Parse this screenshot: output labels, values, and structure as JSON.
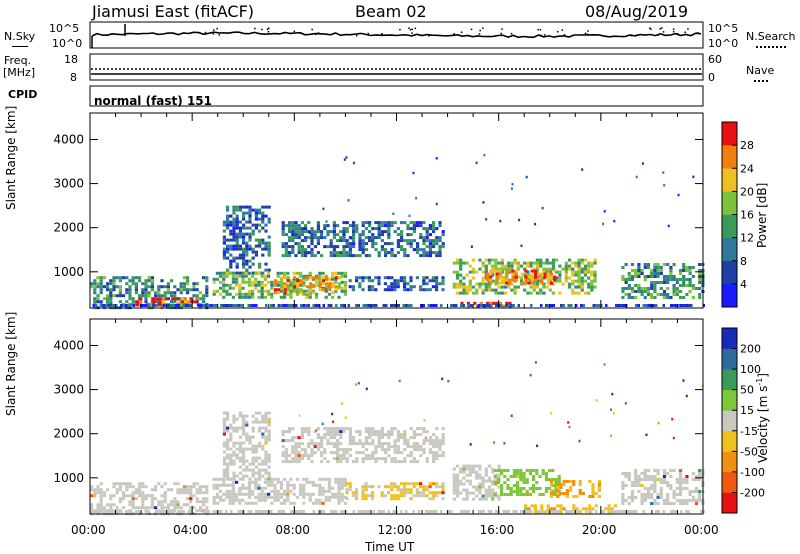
{
  "header": {
    "station": "Jiamusi East (fitACF)",
    "beam": "Beam 02",
    "date": "08/Aug/2019"
  },
  "summary": {
    "nsky_label": "N.Sky",
    "nsearch_label": "N.Search",
    "noise_ticks": [
      "10^5",
      "10^0"
    ],
    "freq_label_top": "Freq.",
    "freq_label_unit": "[MHz]",
    "freq_ticks": [
      "18",
      "8"
    ],
    "nave_label": "Nave",
    "nave_ticks": [
      "60",
      "0"
    ],
    "cpid_label": "CPID",
    "cpid_value": "normal (fast) 151"
  },
  "x_axis": {
    "label": "Time UT",
    "ticks": [
      "00:00",
      "04:00",
      "08:00",
      "12:00",
      "16:00",
      "20:00",
      "00:00"
    ]
  },
  "chart_data": [
    {
      "type": "heatmap",
      "panel": "power",
      "ylabel": "Slant Range [km]",
      "ylim": [
        180,
        4600
      ],
      "yticks": [
        "4000",
        "3000",
        "2000",
        "1000"
      ],
      "x_hours": [
        0,
        24
      ],
      "colorbar": {
        "label": "Power [dB]",
        "ticks": [
          "28",
          "24",
          "20",
          "16",
          "12",
          "8",
          "4"
        ],
        "colors": [
          "#1a1aff",
          "#2040a8",
          "#2f7a9a",
          "#3a9a5a",
          "#7cc23a",
          "#f0c020",
          "#f08010",
          "#e81010"
        ]
      },
      "echo_regions": [
        {
          "t0": 0.0,
          "t1": 4.6,
          "r0": 200,
          "r1": 900,
          "level": 0.35
        },
        {
          "t0": 1.8,
          "t1": 4.2,
          "r0": 220,
          "r1": 420,
          "level": 0.9
        },
        {
          "t0": 5.2,
          "t1": 7.0,
          "r0": 1000,
          "r1": 2500,
          "level": 0.25
        },
        {
          "t0": 4.8,
          "t1": 10.0,
          "r0": 400,
          "r1": 1000,
          "level": 0.5
        },
        {
          "t0": 7.2,
          "t1": 9.8,
          "r0": 500,
          "r1": 900,
          "level": 0.75
        },
        {
          "t0": 7.5,
          "t1": 13.8,
          "r0": 1400,
          "r1": 2150,
          "level": 0.3
        },
        {
          "t0": 10.0,
          "t1": 13.8,
          "r0": 600,
          "r1": 900,
          "level": 0.2
        },
        {
          "t0": 14.2,
          "t1": 19.8,
          "r0": 500,
          "r1": 1300,
          "level": 0.55
        },
        {
          "t0": 15.5,
          "t1": 18.2,
          "r0": 750,
          "r1": 1050,
          "level": 0.8
        },
        {
          "t0": 14.5,
          "t1": 16.5,
          "r0": 220,
          "r1": 320,
          "level": 0.95
        },
        {
          "t0": 20.8,
          "t1": 24.0,
          "r0": 400,
          "r1": 1200,
          "level": 0.4
        }
      ]
    },
    {
      "type": "heatmap",
      "panel": "velocity",
      "ylabel": "Slant Range [km]",
      "ylim": [
        180,
        4600
      ],
      "yticks": [
        "4000",
        "3000",
        "2000",
        "1000"
      ],
      "x_hours": [
        0,
        24
      ],
      "colorbar": {
        "label": "Velocity [m s",
        "label_sup": "-1",
        "label_end": "]",
        "ticks": [
          "200",
          "100",
          "50",
          "15",
          "-15",
          "-50",
          "-100",
          "-200"
        ],
        "colors": [
          "#e81010",
          "#f05a10",
          "#f09010",
          "#f0c020",
          "#c8c8c0",
          "#7cc83a",
          "#3a9a5a",
          "#2f6aa0",
          "#1a2ab8"
        ]
      },
      "echo_regions": [
        {
          "t0": 0.0,
          "t1": 4.6,
          "r0": 200,
          "r1": 900,
          "vel": 0
        },
        {
          "t0": 5.2,
          "t1": 7.0,
          "r0": 1000,
          "r1": 2500,
          "vel": 0
        },
        {
          "t0": 4.8,
          "t1": 10.0,
          "r0": 400,
          "r1": 1000,
          "vel": 0
        },
        {
          "t0": 7.5,
          "t1": 13.8,
          "r0": 1400,
          "r1": 2150,
          "vel": 0
        },
        {
          "t0": 10.0,
          "t1": 13.8,
          "r0": 500,
          "r1": 900,
          "vel": -20
        },
        {
          "t0": 14.2,
          "t1": 16.0,
          "r0": 500,
          "r1": 1300,
          "vel": 0
        },
        {
          "t0": 15.8,
          "t1": 18.4,
          "r0": 600,
          "r1": 1200,
          "vel": 30
        },
        {
          "t0": 18.0,
          "t1": 20.0,
          "r0": 600,
          "r1": 950,
          "vel": -50
        },
        {
          "t0": 17.0,
          "t1": 20.6,
          "r0": 200,
          "r1": 400,
          "vel": -40
        },
        {
          "t0": 20.8,
          "t1": 24.0,
          "r0": 400,
          "r1": 1200,
          "vel": 0
        }
      ]
    }
  ]
}
